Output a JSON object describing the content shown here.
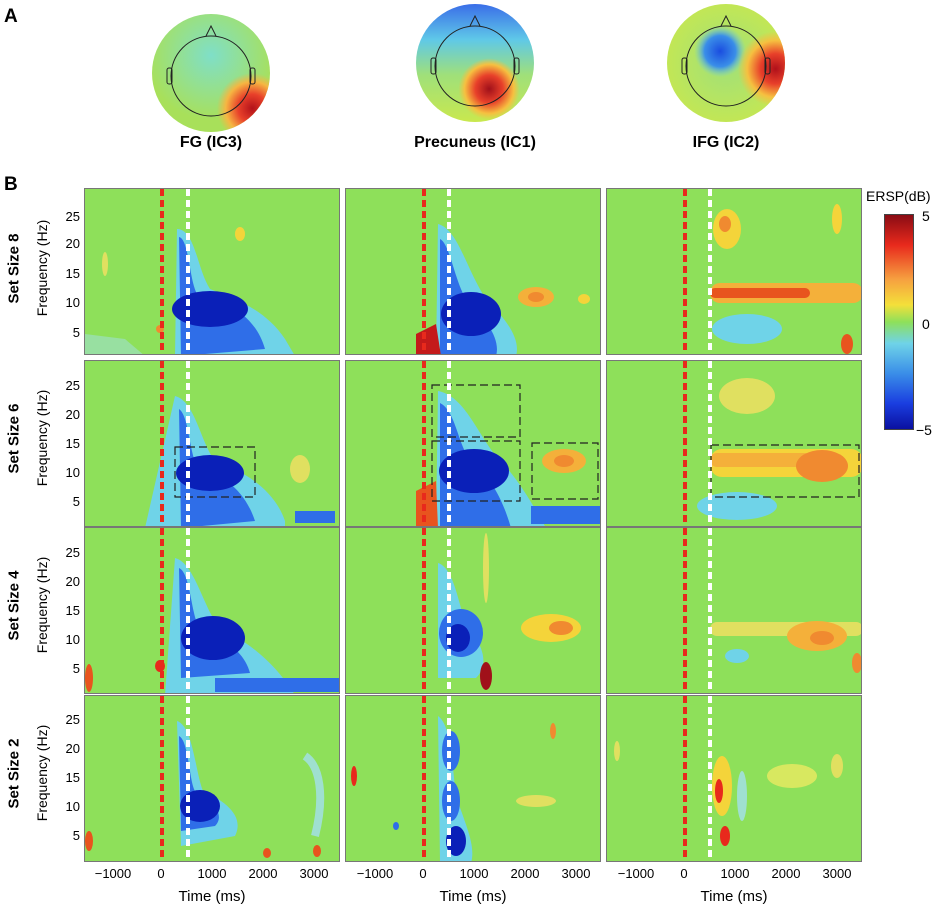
{
  "panel_a": {
    "letter": "A",
    "topographies": [
      {
        "label": "FG (IC3)"
      },
      {
        "label": "Precuneus (IC1)"
      },
      {
        "label": "IFG (IC2)"
      }
    ]
  },
  "panel_b": {
    "letter": "B",
    "row_labels": [
      "Set Size 8",
      "Set Size 6",
      "Set Size 4",
      "Set Size 2"
    ],
    "y_axis_label": "Frequency (Hz)",
    "y_ticks": [
      "25",
      "20",
      "15",
      "10",
      "5"
    ],
    "x_axis_label": "Time (ms)",
    "x_ticks": [
      "−1000",
      "0",
      "1000",
      "2000",
      "3000"
    ],
    "colorbar": {
      "title": "ERSP(dB)",
      "max_label": "5",
      "mid_label": "0",
      "min_label": "−5"
    }
  },
  "colors": {
    "background_green": "#8ee05a",
    "event_line_red": "#e8291c",
    "event_line_white": "#ffffff"
  }
}
